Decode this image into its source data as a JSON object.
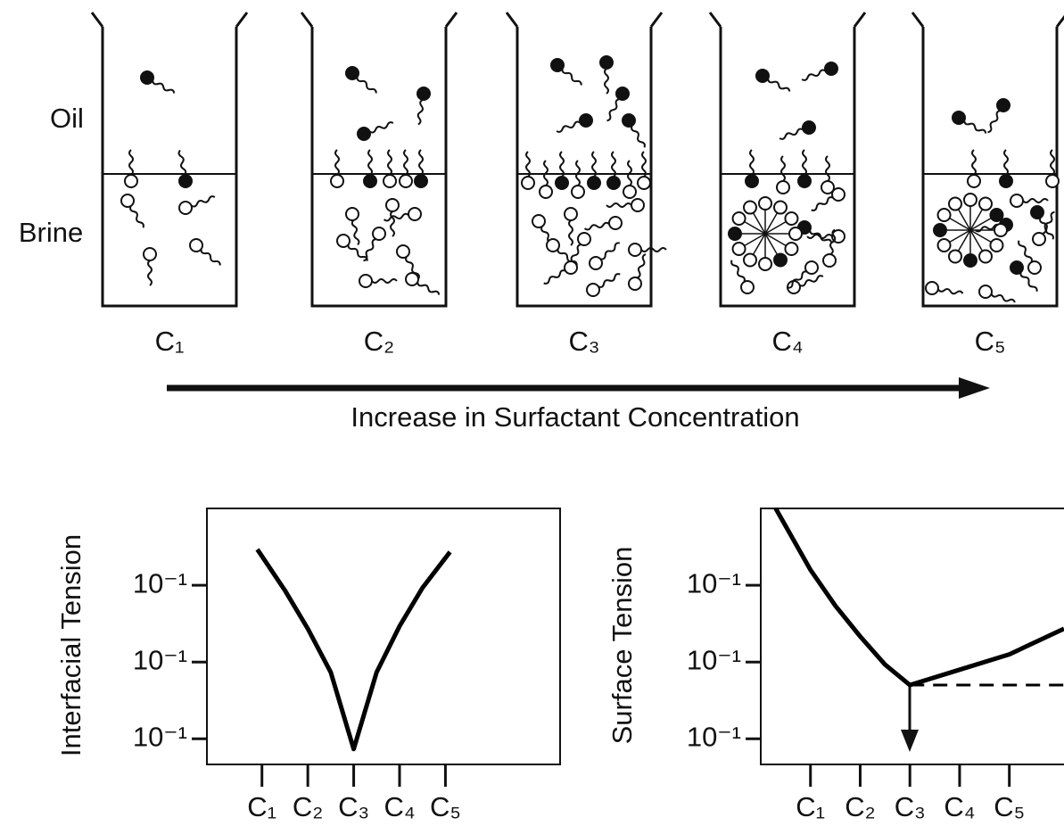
{
  "diagram": {
    "phases": [
      "Oil",
      "Brine"
    ],
    "beakers": [
      "C₁",
      "C₂",
      "C₃",
      "C₄",
      "C₅"
    ],
    "arrow_label": "Increase in Surfactant Concentration"
  },
  "chart_data": [
    {
      "type": "line",
      "ylabel": "Interfacial Tension",
      "xlim": [
        -0.2,
        7.5
      ],
      "ylim": [
        0,
        10
      ],
      "xticks": [
        {
          "value": 1,
          "label": "C₁"
        },
        {
          "value": 2,
          "label": "C₂"
        },
        {
          "value": 3,
          "label": "C₃"
        },
        {
          "value": 4,
          "label": "C₄"
        },
        {
          "value": 5,
          "label": "C₅"
        }
      ],
      "yticks": [
        {
          "value": 1,
          "label": "10⁻¹"
        },
        {
          "value": 4,
          "label": "10⁻¹"
        },
        {
          "value": 7,
          "label": "10⁻¹"
        }
      ],
      "series": [
        {
          "color": "#000000",
          "line_style": "solid",
          "x": [
            0.9,
            1.5,
            2,
            2.5,
            3,
            3.5,
            4,
            4.5,
            5.1
          ],
          "values": [
            8.4,
            6.8,
            5.3,
            3.6,
            0.6,
            3.6,
            5.4,
            6.9,
            8.3
          ]
        }
      ]
    },
    {
      "type": "line",
      "ylabel": "Surface Tension",
      "xlim": [
        0,
        6.1
      ],
      "ylim": [
        0,
        10
      ],
      "xticks": [
        {
          "value": 1,
          "label": "C₁"
        },
        {
          "value": 2,
          "label": "C₂"
        },
        {
          "value": 3,
          "label": "C₃"
        },
        {
          "value": 4,
          "label": "C₄"
        },
        {
          "value": 5,
          "label": "C₅"
        }
      ],
      "yticks": [
        {
          "value": 1,
          "label": "10⁻¹"
        },
        {
          "value": 4,
          "label": "10⁻¹"
        },
        {
          "value": 7,
          "label": "10⁻¹"
        }
      ],
      "series": [
        {
          "color": "#000000",
          "line_style": "solid",
          "x": [
            0.3,
            1,
            1.5,
            2,
            2.5,
            3,
            4,
            5,
            6.1
          ],
          "values": [
            10,
            7.6,
            6.2,
            5,
            3.9,
            3.1,
            3.7,
            4.3,
            5.3
          ]
        },
        {
          "color": "#000000",
          "line_style": "dashed",
          "x": [
            3,
            6.1
          ],
          "values": [
            3.1,
            3.1
          ]
        }
      ]
    }
  ]
}
